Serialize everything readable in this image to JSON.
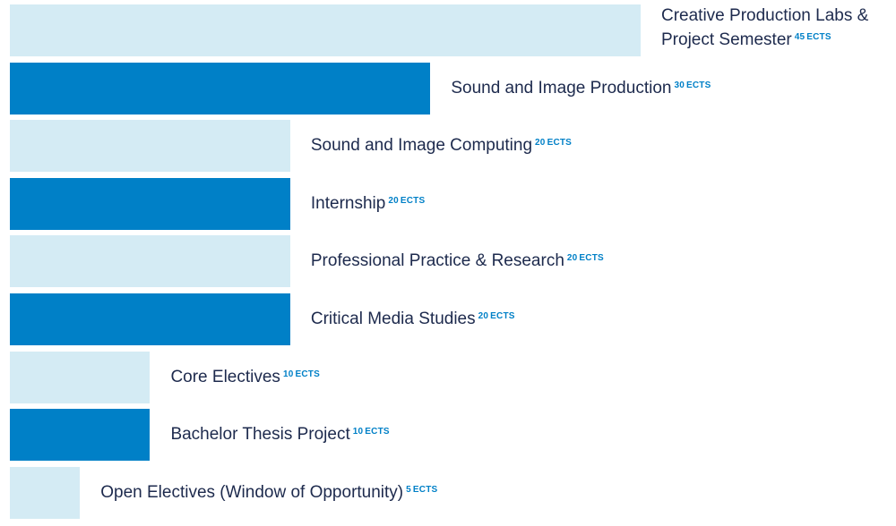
{
  "chart_data": {
    "type": "bar",
    "orientation": "horizontal",
    "grid": false,
    "xlim": [
      0,
      45
    ],
    "unit": "ECTS",
    "colors": {
      "light": "#d4ebf4",
      "dark": "#0080c7",
      "label_text": "#1d2a4d",
      "unit_text": "#0080c7"
    },
    "bars": [
      {
        "label": "Creative Production Labs & Project Semester",
        "value": 45,
        "style": "light"
      },
      {
        "label": "Sound and Image Production",
        "value": 30,
        "style": "dark"
      },
      {
        "label": "Sound and Image Computing",
        "value": 20,
        "style": "light"
      },
      {
        "label": "Internship",
        "value": 20,
        "style": "dark"
      },
      {
        "label": "Professional Practice & Research",
        "value": 20,
        "style": "light"
      },
      {
        "label": "Critical Media Studies",
        "value": 20,
        "style": "dark"
      },
      {
        "label": "Core Electives",
        "value": 10,
        "style": "light"
      },
      {
        "label": "Bachelor Thesis Project",
        "value": 10,
        "style": "dark"
      },
      {
        "label": "Open Electives (Window of Opportunity)",
        "value": 5,
        "style": "light"
      }
    ]
  }
}
